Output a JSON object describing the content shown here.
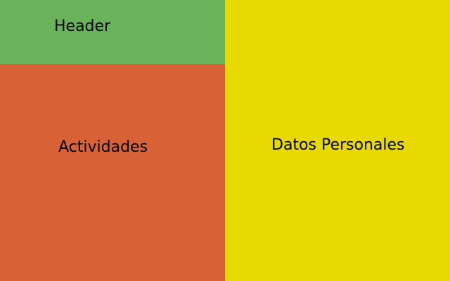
{
  "panels": {
    "header": {
      "label": "Header",
      "color": "#6ab35b"
    },
    "actividades": {
      "label": "Actividades",
      "color": "#d86236"
    },
    "datos_personales": {
      "label": "Datos Personales",
      "color": "#e8d900"
    }
  }
}
